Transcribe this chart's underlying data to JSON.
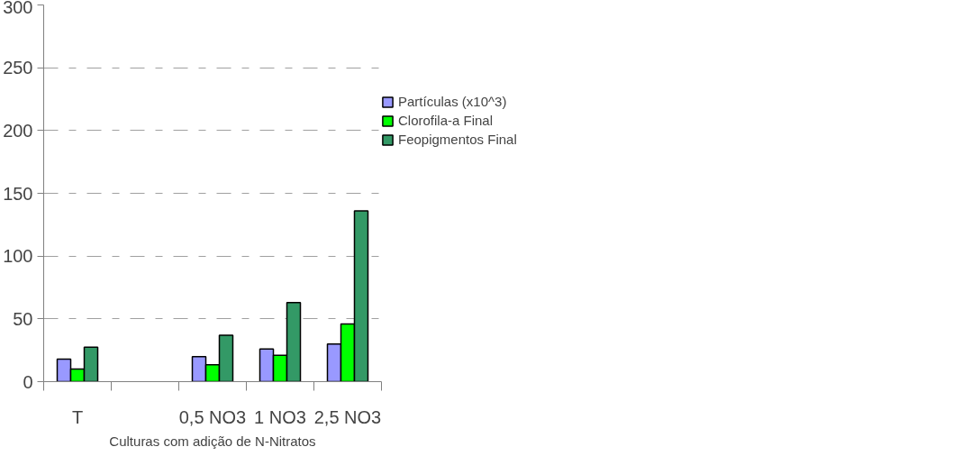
{
  "chart_data": {
    "type": "bar",
    "xlabel": "Culturas com adição de N-Nitratos",
    "categories": [
      "T",
      null,
      "0,5 NO3",
      "1 NO3",
      "2,5 NO3"
    ],
    "series": [
      {
        "name": "Partículas (x10^3)",
        "color": "#9999ff",
        "values": [
          18,
          null,
          20,
          26,
          30
        ]
      },
      {
        "name": "Clorofila-a Final",
        "color": "#00ff00",
        "values": [
          10,
          null,
          13.5,
          21,
          46
        ]
      },
      {
        "name": "Feopigmentos Final",
        "color": "#339966",
        "values": [
          27.5,
          null,
          37,
          63,
          136
        ]
      }
    ],
    "ylim": [
      0,
      300
    ],
    "yticks": [
      0,
      50,
      100,
      150,
      200,
      250,
      300
    ],
    "grid": "y",
    "legend": "right"
  }
}
